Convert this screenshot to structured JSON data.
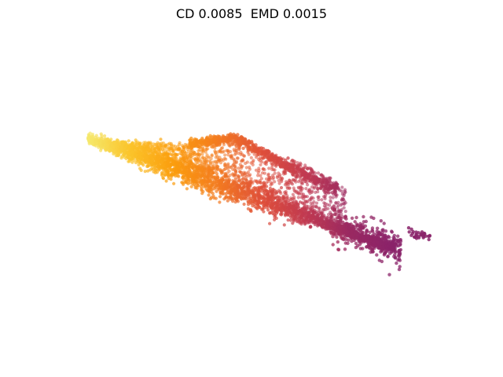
{
  "figure": {
    "title": "CD 0.0085  EMD 0.0015"
  },
  "colors": {
    "background": "#ffffff",
    "colormap": [
      "#f5ea6f",
      "#fbc42b",
      "#fb9d0e",
      "#f37b20",
      "#df4f3a",
      "#c13a51",
      "#9a2a62",
      "#8a236a"
    ]
  }
}
